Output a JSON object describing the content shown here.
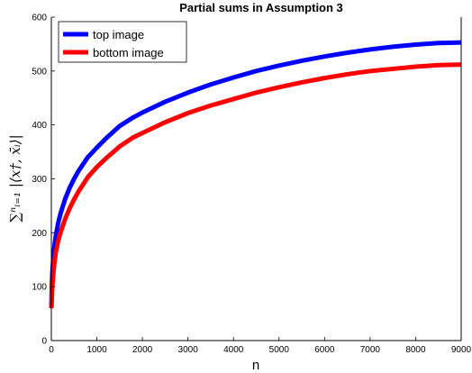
{
  "chart_data": {
    "type": "line",
    "title": "Partial sums in Assumption 3",
    "xlabel": "n",
    "ylabel": "∑ⁿᵢ₌₁ |⟨x†, x̄ᵢ⟩|",
    "xlim": [
      0,
      9000
    ],
    "ylim": [
      0,
      600
    ],
    "xticks": [
      "0",
      "1000",
      "2000",
      "3000",
      "4000",
      "5000",
      "6000",
      "7000",
      "8000",
      "9000"
    ],
    "yticks": [
      "0",
      "100",
      "200",
      "300",
      "400",
      "500",
      "600"
    ],
    "grid": false,
    "legend_position": "top-left",
    "series": [
      {
        "name": "top image",
        "color": "#0000ff",
        "x": [
          1,
          10,
          25,
          50,
          75,
          100,
          150,
          200,
          300,
          400,
          500,
          600,
          800,
          1000,
          1200,
          1500,
          1800,
          2000,
          2500,
          3000,
          3500,
          4000,
          4500,
          5000,
          5500,
          6000,
          6500,
          7000,
          7500,
          8000,
          8500,
          9000
        ],
        "values": [
          60,
          100,
          130,
          160,
          180,
          195,
          218,
          235,
          262,
          283,
          300,
          315,
          340,
          358,
          375,
          398,
          414,
          423,
          443,
          460,
          475,
          488,
          500,
          510,
          519,
          527,
          534,
          540,
          545,
          549,
          552,
          553
        ]
      },
      {
        "name": "bottom image",
        "color": "#ff0000",
        "x": [
          1,
          10,
          25,
          50,
          75,
          100,
          150,
          200,
          300,
          400,
          500,
          600,
          800,
          1000,
          1200,
          1500,
          1800,
          2000,
          2500,
          3000,
          3500,
          4000,
          4500,
          5000,
          5500,
          6000,
          6500,
          7000,
          7500,
          8000,
          8500,
          9000
        ],
        "values": [
          60,
          80,
          105,
          130,
          150,
          165,
          185,
          200,
          225,
          245,
          262,
          277,
          303,
          322,
          338,
          360,
          377,
          385,
          405,
          422,
          436,
          448,
          460,
          470,
          479,
          487,
          494,
          500,
          504,
          508,
          511,
          512
        ]
      }
    ]
  }
}
